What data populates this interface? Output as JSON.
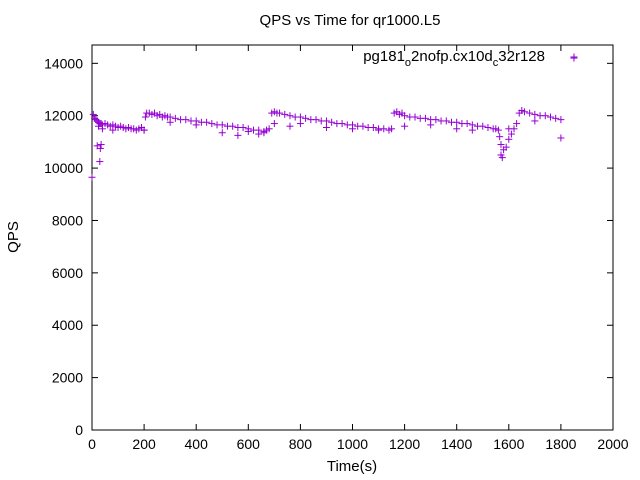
{
  "chart_data": {
    "type": "scatter",
    "title": "QPS vs Time for qr1000.L5",
    "xlabel": "Time(s)",
    "ylabel": "QPS",
    "xlim": [
      0,
      2000
    ],
    "ylim": [
      0,
      14700
    ],
    "xticks": [
      "0",
      "200",
      "400",
      "600",
      "800",
      "1000",
      "1200",
      "1400",
      "1600",
      "1800",
      "2000"
    ],
    "yticks": [
      "0",
      "2000",
      "4000",
      "6000",
      "8000",
      "10000",
      "12000",
      "14000"
    ],
    "grid": false,
    "legend_position": "top-right",
    "legend": {
      "base": "pg181",
      "sub1": "o",
      "mid": "2nofp.cx10d",
      "sub2": "c",
      "tail": "32r128"
    },
    "series": [
      {
        "name": "pg181_o2nofp.cx10d_c32r128",
        "color": "#9400d3",
        "marker": "+",
        "x": [
          0,
          5,
          10,
          15,
          20,
          25,
          30,
          35,
          40,
          50,
          60,
          70,
          80,
          90,
          100,
          110,
          120,
          130,
          140,
          150,
          160,
          170,
          180,
          190,
          200,
          205,
          210,
          220,
          230,
          240,
          250,
          260,
          270,
          280,
          290,
          300,
          320,
          340,
          360,
          380,
          400,
          420,
          440,
          460,
          480,
          500,
          520,
          540,
          560,
          580,
          600,
          620,
          640,
          660,
          670,
          680,
          690,
          700,
          710,
          720,
          740,
          760,
          780,
          800,
          820,
          840,
          860,
          880,
          900,
          920,
          940,
          960,
          980,
          1000,
          1020,
          1040,
          1060,
          1080,
          1100,
          1120,
          1140,
          1150,
          1160,
          1170,
          1180,
          1190,
          1200,
          1220,
          1240,
          1260,
          1280,
          1300,
          1320,
          1340,
          1360,
          1380,
          1400,
          1420,
          1440,
          1460,
          1480,
          1500,
          1520,
          1540,
          1550,
          1560,
          1565,
          1570,
          1575,
          1580,
          1590,
          1600,
          1610,
          1620,
          1630,
          1640,
          1650,
          1660,
          1680,
          1700,
          1720,
          1740,
          1760,
          1780,
          1800,
          1850,
          20,
          30,
          32,
          35,
          25,
          40,
          80,
          200,
          300,
          400,
          500,
          560,
          600,
          640,
          660,
          700,
          760,
          800,
          900,
          1000,
          1100,
          1200,
          1300,
          1400,
          1460,
          1570,
          1600,
          1700,
          1800
        ],
        "y": [
          9650,
          12050,
          11900,
          11850,
          11800,
          11750,
          11700,
          11700,
          11650,
          11700,
          11650,
          11600,
          11650,
          11600,
          11550,
          11600,
          11550,
          11500,
          11550,
          11500,
          11500,
          11450,
          11500,
          11550,
          11450,
          11950,
          12100,
          12100,
          12050,
          12100,
          12000,
          12050,
          11950,
          12000,
          11950,
          11950,
          11900,
          11850,
          11850,
          11800,
          11800,
          11750,
          11750,
          11700,
          11650,
          11650,
          11600,
          11600,
          11550,
          11550,
          11500,
          11450,
          11450,
          11400,
          11450,
          11500,
          12100,
          12150,
          12100,
          12100,
          12050,
          12000,
          11950,
          11950,
          11900,
          11850,
          11850,
          11800,
          11800,
          11750,
          11700,
          11700,
          11650,
          11650,
          11600,
          11600,
          11550,
          11550,
          11500,
          11500,
          11450,
          11500,
          12100,
          12150,
          12050,
          12100,
          12000,
          11950,
          11950,
          11900,
          11900,
          11850,
          11850,
          11800,
          11800,
          11750,
          11750,
          11700,
          11700,
          11650,
          11600,
          11600,
          11550,
          11500,
          11500,
          11450,
          11200,
          10900,
          10400,
          10700,
          10800,
          11100,
          11300,
          11500,
          11700,
          12100,
          12200,
          12150,
          12100,
          12050,
          12000,
          12000,
          11950,
          11900,
          11850,
          14200,
          10850,
          10250,
          10750,
          10900,
          11600,
          11500,
          11450,
          11450,
          11750,
          11650,
          11350,
          11250,
          11400,
          11300,
          11350,
          11700,
          11600,
          11700,
          11550,
          11500,
          11450,
          11600,
          11650,
          11500,
          11450,
          10500,
          11500,
          11800,
          11150
        ]
      }
    ]
  }
}
